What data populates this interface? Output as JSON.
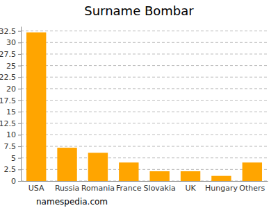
{
  "chart_data": {
    "type": "bar",
    "title": "Surname Bombar",
    "categories": [
      "USA",
      "Russia",
      "Romania",
      "France",
      "Slovakia",
      "UK",
      "Hungary",
      "Others"
    ],
    "values": [
      32.2,
      7.2,
      6.1,
      4,
      2.1,
      2.1,
      1.1,
      4
    ],
    "color": "#ffa500",
    "ylim": [
      0,
      33.5
    ],
    "yticks": [
      0,
      2.5,
      5,
      7.5,
      10,
      12.5,
      15,
      17.5,
      20,
      22.5,
      25,
      27.5,
      30,
      32.5
    ],
    "grid": true,
    "source": "namespedia.com"
  }
}
